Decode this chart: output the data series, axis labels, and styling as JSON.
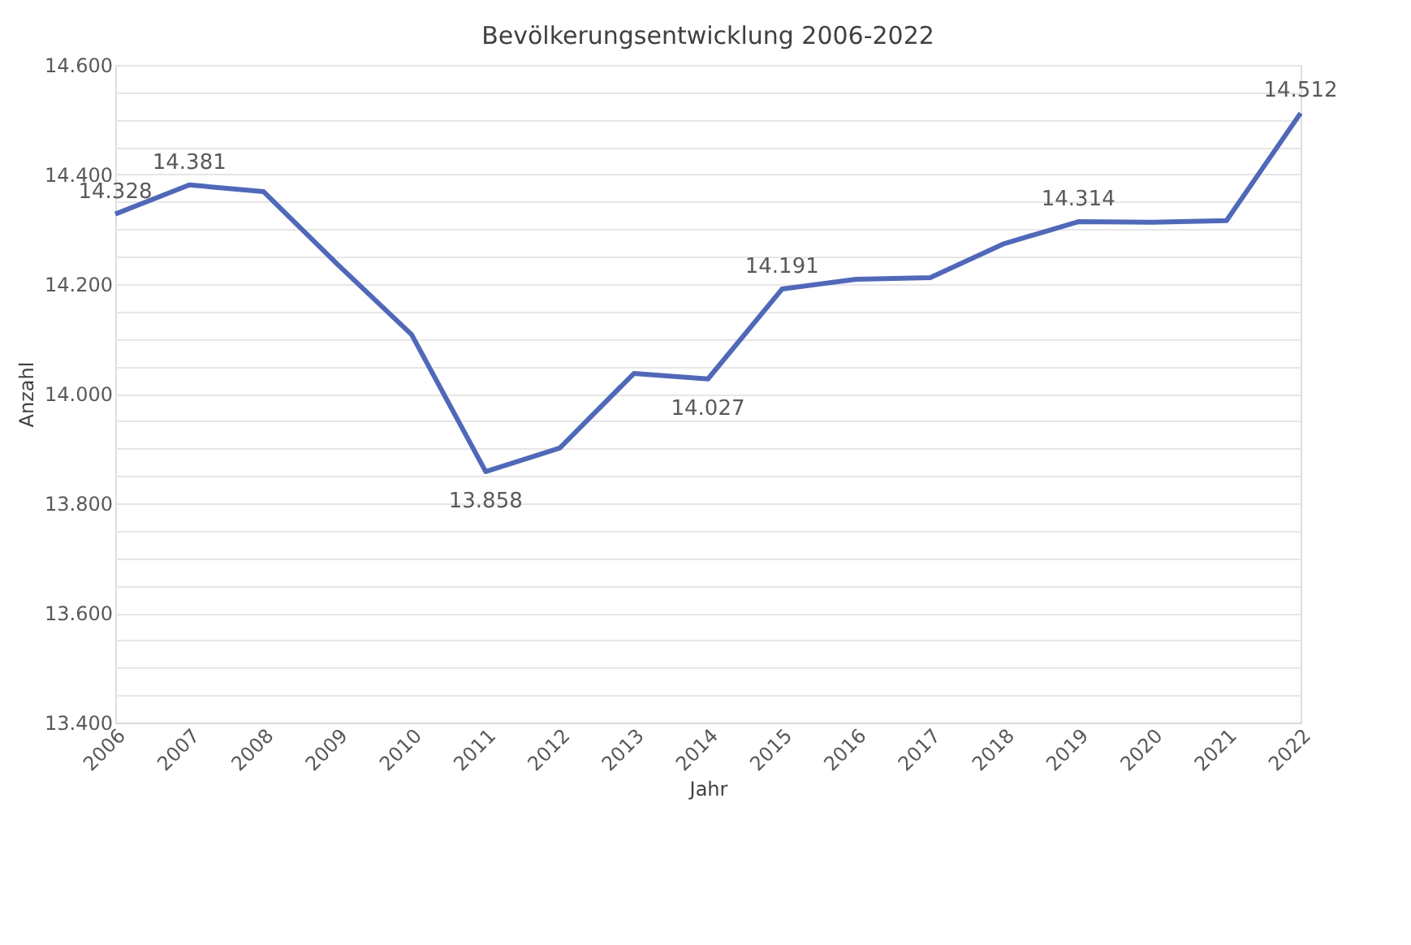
{
  "chart_data": {
    "type": "line",
    "title": "Bevölkerungsentwicklung 2006-2022",
    "xlabel": "Jahr",
    "ylabel": "Anzahl",
    "categories": [
      "2006",
      "2007",
      "2008",
      "2009",
      "2010",
      "2011",
      "2012",
      "2013",
      "2014",
      "2015",
      "2016",
      "2017",
      "2018",
      "2019",
      "2020",
      "2021",
      "2022"
    ],
    "series": [
      {
        "color": "#5068b8",
        "values": [
          14328,
          14381,
          14369,
          14236,
          14108,
          13858,
          13901,
          14037,
          14027,
          14191,
          14209,
          14212,
          14274,
          14314,
          14313,
          14316,
          14512
        ],
        "value_labels": [
          "14.328",
          "14.381",
          null,
          null,
          null,
          "13.858",
          null,
          null,
          "14.027",
          "14.191",
          null,
          null,
          null,
          "14.314",
          null,
          null,
          "14.512"
        ]
      }
    ],
    "ylim": [
      13400,
      14600
    ],
    "yticks": [
      {
        "value": 13400,
        "label": "13.400"
      },
      {
        "value": 13450,
        "label": null
      },
      {
        "value": 13500,
        "label": null
      },
      {
        "value": 13550,
        "label": null
      },
      {
        "value": 13600,
        "label": "13.600"
      },
      {
        "value": 13650,
        "label": null
      },
      {
        "value": 13700,
        "label": null
      },
      {
        "value": 13750,
        "label": null
      },
      {
        "value": 13800,
        "label": "13.800"
      },
      {
        "value": 13850,
        "label": null
      },
      {
        "value": 13900,
        "label": null
      },
      {
        "value": 13950,
        "label": null
      },
      {
        "value": 14000,
        "label": "14.000"
      },
      {
        "value": 14050,
        "label": null
      },
      {
        "value": 14100,
        "label": null
      },
      {
        "value": 14150,
        "label": null
      },
      {
        "value": 14200,
        "label": "14.200"
      },
      {
        "value": 14250,
        "label": null
      },
      {
        "value": 14300,
        "label": null
      },
      {
        "value": 14350,
        "label": null
      },
      {
        "value": 14400,
        "label": "14.400"
      },
      {
        "value": 14450,
        "label": null
      },
      {
        "value": 14500,
        "label": null
      },
      {
        "value": 14550,
        "label": null
      },
      {
        "value": 14600,
        "label": "14.600"
      }
    ],
    "grid": "y",
    "legend": false,
    "marker": "none",
    "line_style": "solid"
  }
}
